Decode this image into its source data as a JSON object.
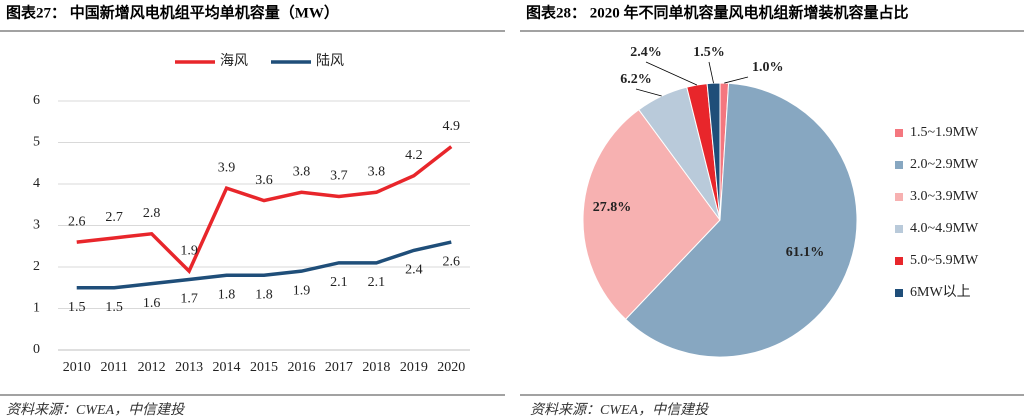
{
  "chart_data": [
    {
      "type": "line",
      "title": "图表27：  中国新增风电机组平均单机容量（MW）",
      "categories": [
        "2010",
        "2011",
        "2012",
        "2013",
        "2014",
        "2015",
        "2016",
        "2017",
        "2018",
        "2019",
        "2020"
      ],
      "series": [
        {
          "name": "海风",
          "color": "#e8262b",
          "values": [
            2.6,
            2.7,
            2.8,
            1.9,
            3.9,
            3.6,
            3.8,
            3.7,
            3.8,
            4.2,
            4.9
          ]
        },
        {
          "name": "陆风",
          "color": "#1f4e79",
          "values": [
            1.5,
            1.5,
            1.6,
            1.7,
            1.8,
            1.8,
            1.9,
            2.1,
            2.1,
            2.4,
            2.6
          ]
        }
      ],
      "ylim": [
        0,
        6
      ],
      "yticks": [
        0,
        1,
        2,
        3,
        4,
        5,
        6
      ],
      "grid": true,
      "legend": "top",
      "source": "资料来源：CWEA，中信建投"
    },
    {
      "type": "pie",
      "title": "图表28：  2020 年不同单机容量风电机组新增装机容量占比",
      "categories": [
        "1.5~1.9MW",
        "2.0~2.9MW",
        "3.0~3.9MW",
        "4.0~4.9MW",
        "5.0~5.9MW",
        "6MW以上"
      ],
      "values": [
        1.0,
        61.1,
        27.8,
        6.2,
        2.4,
        1.5
      ],
      "value_labels": [
        "1.0%",
        "61.1%",
        "27.8%",
        "6.2%",
        "2.4%",
        "1.5%"
      ],
      "colors": [
        "#f4777f",
        "#87a7c1",
        "#f7b1b1",
        "#b9cada",
        "#e8262b",
        "#1f4e79"
      ],
      "legend": "right",
      "source": "资料来源：CWEA，中信建投"
    }
  ]
}
